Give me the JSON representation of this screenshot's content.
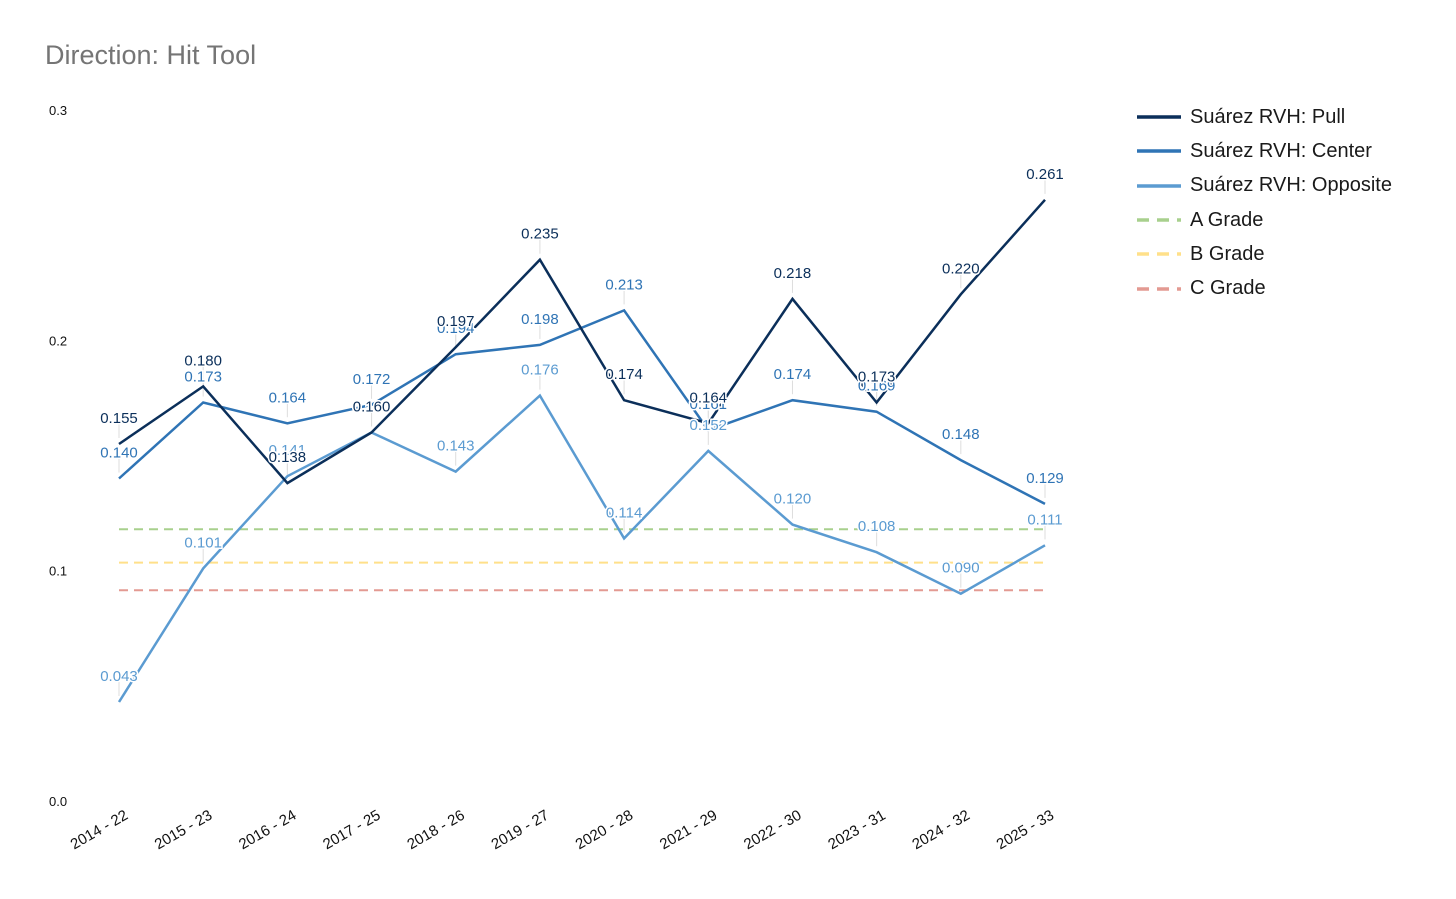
{
  "chart_data": {
    "type": "line",
    "title": "Direction: Hit Tool",
    "xlabel": "",
    "ylabel": "",
    "ylim": [
      0,
      0.3
    ],
    "yticks": [
      "0.0",
      "0.1",
      "0.2",
      "0.3"
    ],
    "categories": [
      "2014 - 22",
      "2015 - 23",
      "2016 - 24",
      "2017 - 25",
      "2018 - 26",
      "2019 - 27",
      "2020 - 28",
      "2021 - 29",
      "2022 - 30",
      "2023 - 31",
      "2024 - 32",
      "2025 - 33"
    ],
    "series": [
      {
        "name": "Suárez RVH: Pull",
        "color": "#0b2f5a",
        "style": "solid",
        "values": [
          0.155,
          0.18,
          0.138,
          0.16,
          0.197,
          0.235,
          0.174,
          0.164,
          0.218,
          0.173,
          0.22,
          0.261
        ],
        "labels": [
          "0.155",
          "0.180",
          "0.138",
          "0.160",
          "0.197",
          "0.235",
          "0.174",
          "0.164",
          "0.218",
          "0.173",
          "0.220",
          "0.261"
        ]
      },
      {
        "name": "Suárez RVH: Center",
        "color": "#2f74b5",
        "style": "solid",
        "values": [
          0.14,
          0.173,
          0.164,
          0.172,
          0.194,
          0.198,
          0.213,
          0.161,
          0.174,
          0.169,
          0.148,
          0.129
        ],
        "labels": [
          "0.140",
          "0.173",
          "0.164",
          "0.172",
          "0.194",
          "0.198",
          "0.213",
          "0.161",
          "0.174",
          "0.169",
          "0.148",
          "0.129"
        ]
      },
      {
        "name": "Suárez RVH: Opposite",
        "color": "#5b9bd1",
        "style": "solid",
        "values": [
          0.043,
          0.101,
          0.141,
          0.16,
          0.143,
          0.176,
          0.114,
          0.152,
          0.12,
          0.108,
          0.09,
          0.111
        ],
        "labels": [
          "0.043",
          "0.101",
          "0.141",
          "0.160",
          "0.143",
          "0.176",
          "0.114",
          "0.152",
          "0.120",
          "0.108",
          "0.090",
          "0.111"
        ]
      },
      {
        "name": "A Grade",
        "color": "#a8d08d",
        "style": "dashed",
        "values": [
          0.118,
          0.118,
          0.118,
          0.118,
          0.118,
          0.118,
          0.118,
          0.118,
          0.118,
          0.118,
          0.118,
          0.118
        ]
      },
      {
        "name": "B Grade",
        "color": "#ffe08a",
        "style": "dashed",
        "values": [
          0.1035,
          0.1035,
          0.1035,
          0.1035,
          0.1035,
          0.1035,
          0.1035,
          0.1035,
          0.1035,
          0.1035,
          0.1035,
          0.1035
        ]
      },
      {
        "name": "C Grade",
        "color": "#e39a92",
        "style": "dashed",
        "values": [
          0.0915,
          0.0915,
          0.0915,
          0.0915,
          0.0915,
          0.0915,
          0.0915,
          0.0915,
          0.0915,
          0.0915,
          0.0915,
          0.0915
        ]
      }
    ],
    "legend": "right",
    "grid": false
  }
}
